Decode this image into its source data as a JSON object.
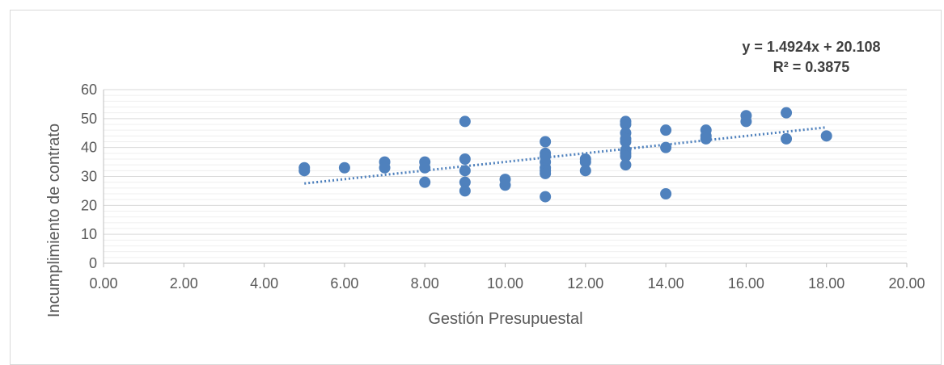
{
  "chart_data": {
    "type": "scatter",
    "xlabel": "Gestión Presupuestal",
    "ylabel": "Incumplimiento de contrato",
    "xlim": [
      0,
      20
    ],
    "ylim": [
      0,
      60
    ],
    "x_ticks": [
      "0.00",
      "2.00",
      "4.00",
      "6.00",
      "8.00",
      "10.00",
      "12.00",
      "14.00",
      "16.00",
      "18.00",
      "20.00"
    ],
    "y_ticks": [
      "0",
      "10",
      "20",
      "30",
      "40",
      "50",
      "60"
    ],
    "grid": "horizontal major and minor",
    "marker_color": "#4f81bd",
    "trendline": {
      "type": "linear",
      "slope": 1.4924,
      "intercept": 20.108,
      "x_range": [
        5,
        18
      ],
      "style": "dotted",
      "color": "#4f81bd",
      "equation": "y = 1.4924x + 20.108",
      "r_squared": "R² = 0.3875"
    },
    "points": [
      {
        "x": 5,
        "y": 33
      },
      {
        "x": 5,
        "y": 32
      },
      {
        "x": 6,
        "y": 33
      },
      {
        "x": 7,
        "y": 35
      },
      {
        "x": 7,
        "y": 33
      },
      {
        "x": 8,
        "y": 35
      },
      {
        "x": 8,
        "y": 33
      },
      {
        "x": 8,
        "y": 28
      },
      {
        "x": 9,
        "y": 49
      },
      {
        "x": 9,
        "y": 36
      },
      {
        "x": 9,
        "y": 32
      },
      {
        "x": 9,
        "y": 28
      },
      {
        "x": 9,
        "y": 25
      },
      {
        "x": 10,
        "y": 29
      },
      {
        "x": 10,
        "y": 27
      },
      {
        "x": 11,
        "y": 42
      },
      {
        "x": 11,
        "y": 38
      },
      {
        "x": 11,
        "y": 37
      },
      {
        "x": 11,
        "y": 35
      },
      {
        "x": 11,
        "y": 33
      },
      {
        "x": 11,
        "y": 32
      },
      {
        "x": 11,
        "y": 31
      },
      {
        "x": 11,
        "y": 23
      },
      {
        "x": 12,
        "y": 36
      },
      {
        "x": 12,
        "y": 35
      },
      {
        "x": 12,
        "y": 32
      },
      {
        "x": 13,
        "y": 49
      },
      {
        "x": 13,
        "y": 48
      },
      {
        "x": 13,
        "y": 45
      },
      {
        "x": 13,
        "y": 43
      },
      {
        "x": 13,
        "y": 42
      },
      {
        "x": 13,
        "y": 39
      },
      {
        "x": 13,
        "y": 38
      },
      {
        "x": 13,
        "y": 37
      },
      {
        "x": 13,
        "y": 34
      },
      {
        "x": 14,
        "y": 46
      },
      {
        "x": 14,
        "y": 40
      },
      {
        "x": 14,
        "y": 24
      },
      {
        "x": 15,
        "y": 46
      },
      {
        "x": 15,
        "y": 44
      },
      {
        "x": 15,
        "y": 43
      },
      {
        "x": 16,
        "y": 51
      },
      {
        "x": 16,
        "y": 49
      },
      {
        "x": 17,
        "y": 52
      },
      {
        "x": 17,
        "y": 43
      },
      {
        "x": 18,
        "y": 44
      }
    ]
  }
}
